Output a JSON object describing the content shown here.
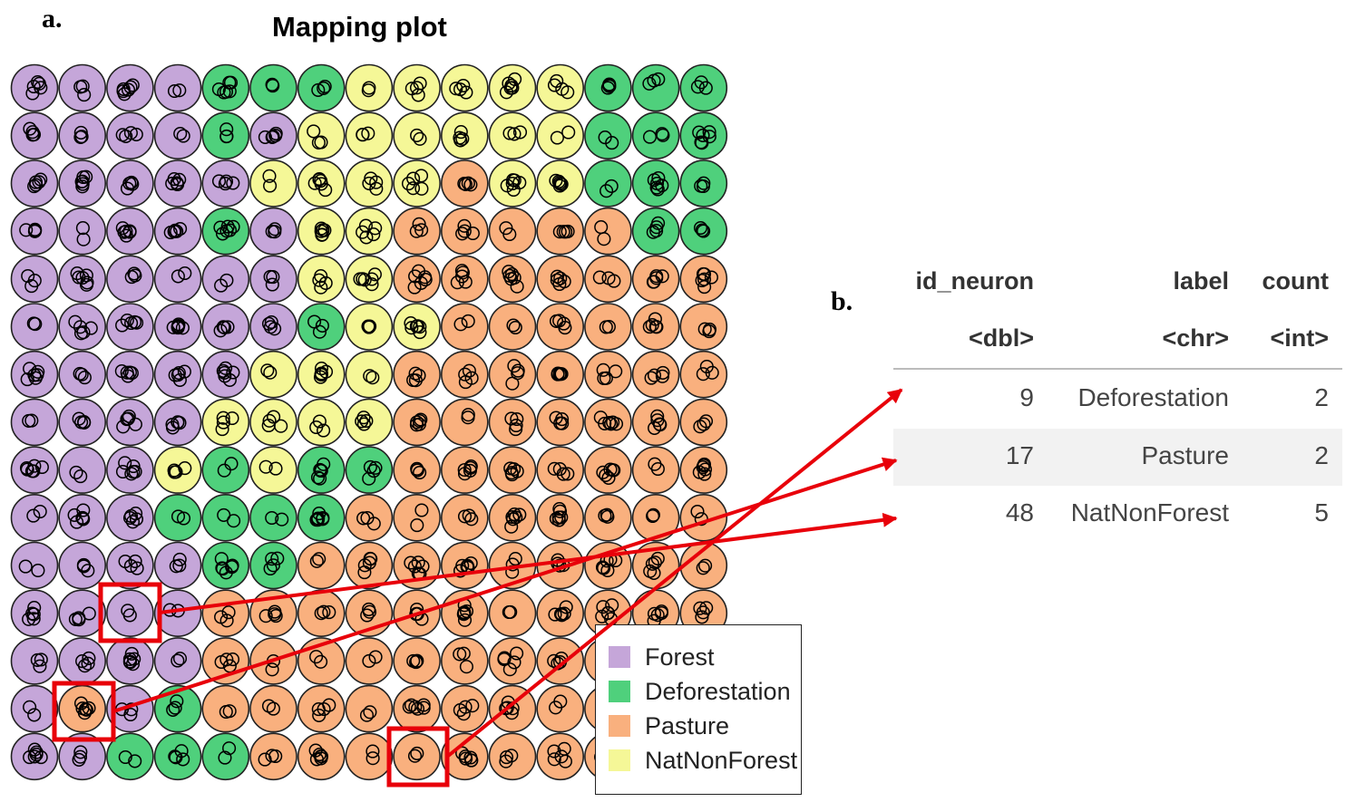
{
  "panel_labels": {
    "a": "a.",
    "b": "b."
  },
  "mapping_plot": {
    "title": "Mapping plot",
    "grid": {
      "cols": 15,
      "rows": 15,
      "legend_code": {
        "F": "Forest",
        "D": "Deforestation",
        "P": "Pasture",
        "N": "NatNonForest"
      },
      "cells": [
        "FFFFDDDNNNNNDDD",
        "FFFFDFNNNNNNDDD",
        "FFFFFNNNNPNNDDD",
        "FFFFDFNNPPPPPDD",
        "FFFFFFNNPPPPPPP",
        "FFFFFFDNNPPPPPP",
        "FFFFFNNNPPPPPPP",
        "FFFFNNNNPPPPPPP",
        "FFFNDNDDPPPPPPP",
        "FFFDDDDPPPPPPPP",
        "FFFFDDPPPPPPPPP",
        "FFFFPPPPPPPPPPP",
        "FFFFPPPPPPPPPPP",
        "FPFDPPPPPPPPPPP",
        "FFDDDPPPPPPPPPP"
      ]
    },
    "legend": [
      {
        "label": "Forest",
        "color": "#c5a6d9"
      },
      {
        "label": "Deforestation",
        "color": "#4fd07c"
      },
      {
        "label": "Pasture",
        "color": "#f9b07e"
      },
      {
        "label": "NatNonForest",
        "color": "#f5f797"
      }
    ],
    "highlighted_neurons": [
      {
        "id_neuron": 9,
        "label": "Deforestation"
      },
      {
        "id_neuron": 17,
        "label": "Pasture"
      },
      {
        "id_neuron": 48,
        "label": "NatNonForest"
      }
    ]
  },
  "table": {
    "columns": [
      {
        "name": "id_neuron",
        "type": "<dbl>"
      },
      {
        "name": "label",
        "type": "<chr>"
      },
      {
        "name": "count",
        "type": "<int>"
      }
    ],
    "rows": [
      {
        "id_neuron": "9",
        "label": "Deforestation",
        "count": "2"
      },
      {
        "id_neuron": "17",
        "label": "Pasture",
        "count": "2"
      },
      {
        "id_neuron": "48",
        "label": "NatNonForest",
        "count": "5"
      }
    ]
  },
  "colors": {
    "highlight": "#e8000a",
    "cell_stroke": "#222222",
    "row_stripe": "#f2f2f2"
  }
}
